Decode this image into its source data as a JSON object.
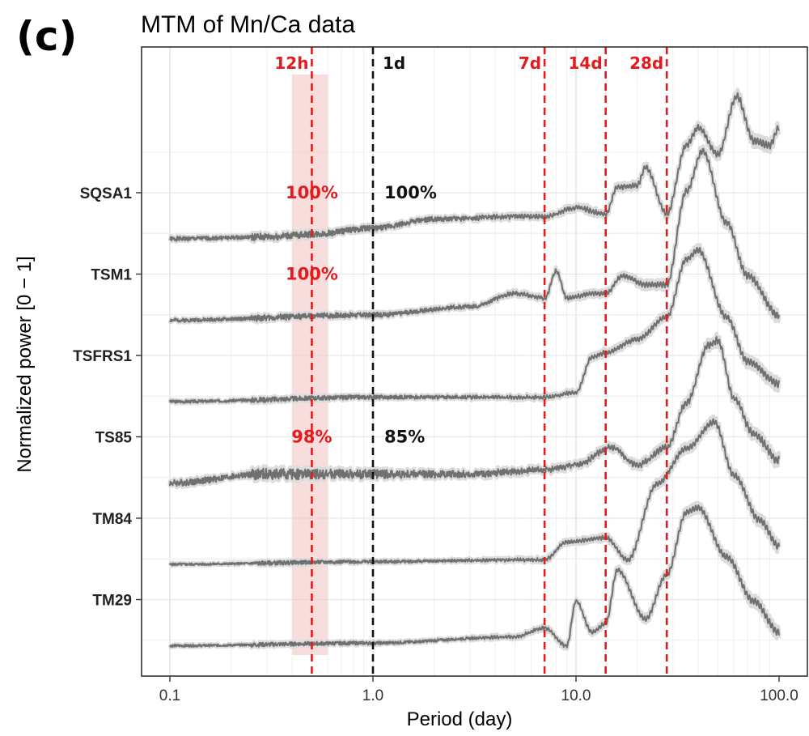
{
  "panel_label": "(c)",
  "chart_data": {
    "type": "line",
    "title": "MTM of Mn/Ca data",
    "xlabel": "Period (day)",
    "ylabel": "Normalized power [0 − 1]",
    "x_scale": "log",
    "xlim": [
      0.1,
      100
    ],
    "x_ticks": [
      "0.1",
      "1.0",
      "10.0",
      "100.0"
    ],
    "grid": true,
    "series": [
      {
        "name": "SQSA1",
        "noise_level": 0.35,
        "anchors": [
          [
            0.1,
            0.0
          ],
          [
            0.3,
            0.02
          ],
          [
            0.5,
            0.05
          ],
          [
            1,
            0.12
          ],
          [
            2,
            0.22
          ],
          [
            5,
            0.25
          ],
          [
            7,
            0.25
          ],
          [
            10,
            0.35
          ],
          [
            14,
            0.28
          ],
          [
            16,
            0.58
          ],
          [
            20,
            0.6
          ],
          [
            22,
            0.8
          ],
          [
            28,
            0.28
          ],
          [
            35,
            1.05
          ],
          [
            40,
            1.25
          ],
          [
            50,
            0.95
          ],
          [
            62,
            1.6
          ],
          [
            75,
            1.1
          ],
          [
            90,
            1.05
          ],
          [
            100,
            1.25
          ]
        ]
      },
      {
        "name": "TSM1",
        "noise_level": 0.3,
        "anchors": [
          [
            0.1,
            0.0
          ],
          [
            1,
            0.06
          ],
          [
            3,
            0.15
          ],
          [
            5,
            0.3
          ],
          [
            7,
            0.25
          ],
          [
            8,
            0.55
          ],
          [
            9,
            0.25
          ],
          [
            12,
            0.3
          ],
          [
            14,
            0.3
          ],
          [
            17,
            0.5
          ],
          [
            22,
            0.4
          ],
          [
            28,
            0.4
          ],
          [
            35,
            1.45
          ],
          [
            42,
            1.9
          ],
          [
            55,
            1.1
          ],
          [
            70,
            0.5
          ],
          [
            100,
            0.05
          ]
        ]
      },
      {
        "name": "TSFRS1",
        "noise_level": 0.25,
        "anchors": [
          [
            0.1,
            0.0
          ],
          [
            1,
            0.05
          ],
          [
            5,
            0.05
          ],
          [
            7,
            0.05
          ],
          [
            10,
            0.1
          ],
          [
            12,
            0.5
          ],
          [
            14,
            0.55
          ],
          [
            20,
            0.7
          ],
          [
            28,
            0.95
          ],
          [
            35,
            1.6
          ],
          [
            40,
            1.7
          ],
          [
            55,
            0.95
          ],
          [
            70,
            0.45
          ],
          [
            100,
            0.2
          ]
        ]
      },
      {
        "name": "TS85",
        "noise_level": 0.55,
        "anchors": [
          [
            0.1,
            0.0
          ],
          [
            0.3,
            0.1
          ],
          [
            1,
            0.1
          ],
          [
            3,
            0.1
          ],
          [
            7,
            0.15
          ],
          [
            10,
            0.2
          ],
          [
            15,
            0.4
          ],
          [
            20,
            0.2
          ],
          [
            28,
            0.4
          ],
          [
            35,
            0.9
          ],
          [
            45,
            1.55
          ],
          [
            50,
            1.6
          ],
          [
            60,
            0.95
          ],
          [
            75,
            0.55
          ],
          [
            100,
            0.25
          ]
        ]
      },
      {
        "name": "TM84",
        "noise_level": 0.2,
        "anchors": [
          [
            0.1,
            0.0
          ],
          [
            1,
            0.03
          ],
          [
            5,
            0.05
          ],
          [
            7,
            0.05
          ],
          [
            9,
            0.25
          ],
          [
            14,
            0.3
          ],
          [
            18,
            0.05
          ],
          [
            25,
            0.9
          ],
          [
            35,
            1.3
          ],
          [
            48,
            1.6
          ],
          [
            60,
            1.0
          ],
          [
            80,
            0.5
          ],
          [
            100,
            0.2
          ]
        ]
      },
      {
        "name": "TM29",
        "noise_level": 0.2,
        "anchors": [
          [
            0.1,
            0.0
          ],
          [
            1,
            0.03
          ],
          [
            5,
            0.1
          ],
          [
            7,
            0.2
          ],
          [
            9,
            0.0
          ],
          [
            10,
            0.5
          ],
          [
            12,
            0.15
          ],
          [
            14,
            0.25
          ],
          [
            16,
            0.85
          ],
          [
            22,
            0.3
          ],
          [
            28,
            0.8
          ],
          [
            35,
            1.5
          ],
          [
            40,
            1.55
          ],
          [
            55,
            1.0
          ],
          [
            75,
            0.5
          ],
          [
            100,
            0.15
          ]
        ]
      }
    ],
    "reference_lines": [
      {
        "label": "12h",
        "x": 0.5,
        "color": "#e41a1c",
        "style": "dashed"
      },
      {
        "label": "1d",
        "x": 1.0,
        "color": "#111111",
        "style": "dashed"
      },
      {
        "label": "7d",
        "x": 7,
        "color": "#e41a1c",
        "style": "dashed"
      },
      {
        "label": "14d",
        "x": 14,
        "color": "#e41a1c",
        "style": "dashed"
      },
      {
        "label": "28d",
        "x": 28,
        "color": "#e41a1c",
        "style": "dashed"
      }
    ],
    "shaded_band": {
      "x_from": 0.4,
      "x_to": 0.6,
      "color": "#f4c7c7"
    },
    "annotations": [
      {
        "text": "100%",
        "series": "SQSA1",
        "x": 0.5,
        "color": "#e41a1c"
      },
      {
        "text": "100%",
        "series": "SQSA1",
        "x": 1.0,
        "color": "#111111"
      },
      {
        "text": "100%",
        "series": "TSM1",
        "x": 0.5,
        "color": "#e41a1c"
      },
      {
        "text": "98%",
        "series": "TS85",
        "x": 0.5,
        "color": "#e41a1c"
      },
      {
        "text": "85%",
        "series": "TS85",
        "x": 1.0,
        "color": "#111111"
      }
    ],
    "colors": {
      "line": "#707070",
      "smooth_band": "#dcdcdc",
      "red": "#e41a1c",
      "black": "#111111"
    }
  }
}
